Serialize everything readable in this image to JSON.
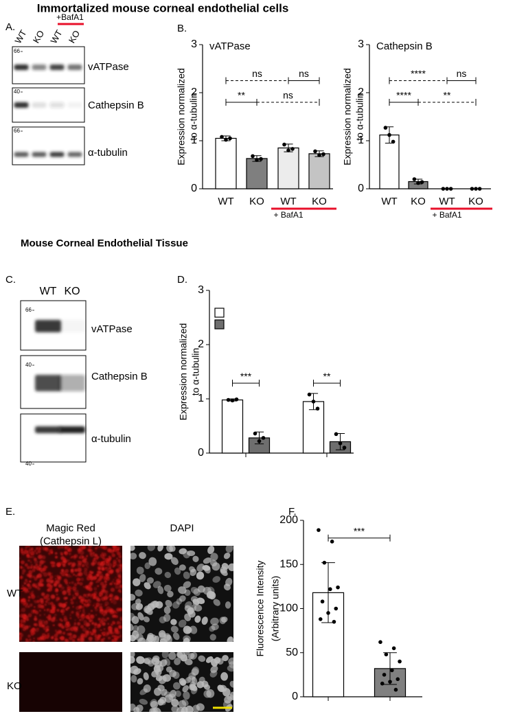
{
  "figure": {
    "section_titles": [
      "Immortalized mouse corneal endothelial cells",
      "Mouse Corneal Endothelial Tissue"
    ],
    "panel_labels": [
      "A.",
      "B.",
      "C.",
      "D.",
      "E.",
      "F."
    ],
    "blot_a": {
      "treatment": "+BafA1",
      "lanes": [
        "WT",
        "KO",
        "WT",
        "KO"
      ],
      "proteins": [
        "vATPase",
        "Cathepsin B",
        "α-tubulin"
      ],
      "markers": [
        "66",
        "40",
        "66"
      ]
    },
    "blot_c": {
      "lanes": [
        "WT",
        "KO"
      ],
      "proteins": [
        "vATPase",
        "Cathepsin B",
        "α-tubulin"
      ],
      "markers": [
        "66",
        "40",
        "40"
      ]
    },
    "images": {
      "stain_magic_red": [
        "Magic Red",
        "(Cathepsin L)"
      ],
      "stain_dapi": "DAPI",
      "rows": [
        "WT",
        "KO"
      ]
    }
  },
  "chart_data": [
    {
      "type": "bar",
      "title": "vATPase",
      "y_label": [
        "Expression normalized",
        "to α-tubulin"
      ],
      "categories": [
        "WT",
        "KO",
        "WT",
        "KO"
      ],
      "values": [
        1.05,
        0.63,
        0.85,
        0.73
      ],
      "errors": [
        0.05,
        0.06,
        0.08,
        0.06
      ],
      "points": [
        [
          1.08,
          1.02,
          1.05
        ],
        [
          0.68,
          0.6,
          0.62
        ],
        [
          0.92,
          0.8,
          0.83
        ],
        [
          0.78,
          0.7,
          0.72
        ]
      ],
      "colors": [
        "#ffffff",
        "#7f7f7f",
        "#ececec",
        "#c4c4c4"
      ],
      "group_label": "+ BafA1",
      "group": [
        2,
        3
      ],
      "ylim": [
        0,
        3
      ],
      "yticks": [
        0,
        1,
        2,
        3
      ],
      "comparisons": [
        {
          "pair": [
            0,
            2
          ],
          "label": "ns",
          "dashed": true,
          "row": 1
        },
        {
          "pair": [
            2,
            3
          ],
          "label": "ns",
          "dashed": false,
          "row": 1
        },
        {
          "pair": [
            0,
            1
          ],
          "label": "**",
          "dashed": false,
          "row": 0
        },
        {
          "pair": [
            1,
            3
          ],
          "label": "ns",
          "dashed": true,
          "row": 0
        }
      ]
    },
    {
      "type": "bar",
      "title": "Cathepsin B",
      "y_label": [
        "Expression normalized",
        "to α-tubulin"
      ],
      "categories": [
        "WT",
        "KO",
        "WT",
        "KO"
      ],
      "values": [
        1.12,
        0.15,
        0,
        0
      ],
      "errors": [
        0.17,
        0.05,
        0,
        0
      ],
      "points": [
        [
          1.27,
          1.12,
          0.98
        ],
        [
          0.2,
          0.12,
          0.14
        ],
        [
          0,
          0,
          0
        ],
        [
          0,
          0,
          0
        ]
      ],
      "colors": [
        "#ffffff",
        "#7f7f7f",
        "#ececec",
        "#c4c4c4"
      ],
      "group_label": "+ BafA1",
      "group": [
        2,
        3
      ],
      "ylim": [
        0,
        3
      ],
      "yticks": [
        0,
        1,
        2,
        3
      ],
      "comparisons": [
        {
          "pair": [
            0,
            2
          ],
          "label": "****",
          "dashed": true,
          "row": 1
        },
        {
          "pair": [
            2,
            3
          ],
          "label": "ns",
          "dashed": false,
          "row": 1
        },
        {
          "pair": [
            0,
            1
          ],
          "label": "****",
          "dashed": false,
          "row": 0
        },
        {
          "pair": [
            1,
            3
          ],
          "label": "**",
          "dashed": true,
          "row": 0
        }
      ]
    },
    {
      "type": "grouped_bar",
      "y_label": [
        "Expression normalized",
        "to α-tubulin"
      ],
      "categories": [
        null,
        null
      ],
      "series": [
        {
          "color": "#ffffff",
          "values": [
            0.98,
            0.95
          ],
          "errors": [
            0.02,
            0.15
          ],
          "points": [
            [
              0.98,
              0.97,
              0.99
            ],
            [
              1.08,
              0.95,
              0.82
            ]
          ]
        },
        {
          "color": "#6e6e6e",
          "values": [
            0.28,
            0.21
          ],
          "errors": [
            0.11,
            0.15
          ],
          "points": [
            [
              0.36,
              0.22,
              0.28
            ],
            [
              0.35,
              0.18,
              0.1
            ]
          ]
        }
      ],
      "ylim": [
        0,
        3
      ],
      "yticks": [
        0,
        1,
        2,
        3
      ],
      "comparisons": [
        {
          "group": 0,
          "label": "***"
        },
        {
          "group": 1,
          "label": "**"
        }
      ]
    },
    {
      "type": "bar",
      "y_label": [
        "Fluorescence Intensity",
        "(Arbitrary units)"
      ],
      "categories": [
        null,
        null
      ],
      "values": [
        118,
        32
      ],
      "errors": [
        34,
        18
      ],
      "points": [
        [
          189,
          176,
          152,
          124,
          122,
          108,
          100,
          95,
          88,
          85
        ],
        [
          62,
          55,
          48,
          40,
          30,
          25,
          20,
          17,
          15,
          8
        ]
      ],
      "colors": [
        "#ffffff",
        "#808080"
      ],
      "ylim": [
        0,
        200
      ],
      "yticks": [
        0,
        50,
        100,
        150,
        200
      ],
      "comparisons": [
        {
          "pair": [
            0,
            1
          ],
          "label": "***",
          "dashed": false,
          "row": 0
        }
      ]
    }
  ]
}
